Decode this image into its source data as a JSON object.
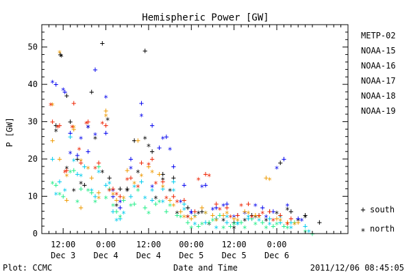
{
  "chart_data": {
    "type": "scatter",
    "title": "Hemispheric Power [GW]",
    "ylabel": "P [GW]",
    "xlabel": "Date and Time",
    "ylim": [
      0,
      56
    ],
    "yticks": [
      0,
      10,
      20,
      30,
      40,
      50
    ],
    "xlim_hours": [
      6,
      92
    ],
    "xticks": [
      {
        "h": 12,
        "time": "12:00",
        "date": "Dec 3"
      },
      {
        "h": 24,
        "time": "0:00",
        "date": "Dec 4"
      },
      {
        "h": 36,
        "time": "12:00",
        "date": "Dec 4"
      },
      {
        "h": 48,
        "time": "00:00",
        "date": "Dec 5"
      },
      {
        "h": 60,
        "time": "12:00",
        "date": "Dec 5"
      },
      {
        "h": 72,
        "time": "0:00",
        "date": "Dec 6"
      }
    ],
    "marker_legend": [
      {
        "symbol": "+",
        "label": "south"
      },
      {
        "symbol": "*",
        "label": "north"
      }
    ],
    "footer_left": "Plot: CCMC",
    "footer_right": "2011/12/06 08:45:05",
    "series": [
      {
        "name": "METP-02",
        "color": "#000000",
        "south": [
          [
            10,
            29
          ],
          [
            11.2,
            48
          ],
          [
            13,
            37
          ],
          [
            14,
            30
          ],
          [
            16,
            20
          ],
          [
            18,
            13
          ],
          [
            20,
            38
          ],
          [
            23,
            51
          ],
          [
            25,
            15
          ],
          [
            28,
            12
          ],
          [
            30,
            12
          ],
          [
            32,
            25
          ],
          [
            35,
            49
          ],
          [
            37,
            22
          ],
          [
            40,
            16
          ],
          [
            43,
            15
          ],
          [
            47,
            7
          ],
          [
            51,
            6
          ],
          [
            55,
            4
          ],
          [
            60,
            3
          ],
          [
            65,
            5
          ],
          [
            70,
            6
          ],
          [
            73,
            19
          ],
          [
            76,
            6
          ],
          [
            80,
            5
          ],
          [
            84,
            3
          ]
        ],
        "north": [
          [
            10,
            28
          ],
          [
            11.5,
            48
          ],
          [
            13,
            18
          ],
          [
            15,
            12
          ],
          [
            17,
            14
          ],
          [
            19,
            29
          ],
          [
            21,
            26
          ],
          [
            23,
            17
          ],
          [
            24.5,
            31
          ],
          [
            27,
            8
          ],
          [
            30,
            12
          ],
          [
            33,
            17
          ],
          [
            35,
            26
          ],
          [
            36,
            24
          ],
          [
            38,
            10
          ],
          [
            40,
            15
          ],
          [
            42,
            12
          ],
          [
            44,
            6
          ],
          [
            47,
            5
          ],
          [
            50,
            6
          ],
          [
            53,
            3
          ],
          [
            57,
            4
          ],
          [
            60,
            2
          ],
          [
            63,
            4
          ],
          [
            66,
            5
          ],
          [
            69,
            4
          ],
          [
            72,
            6
          ],
          [
            75,
            7
          ],
          [
            78,
            4
          ],
          [
            80,
            5
          ]
        ]
      },
      {
        "name": "NOAA-15",
        "color": "#0000ee",
        "south": [
          [
            10,
            40
          ],
          [
            12.5,
            38
          ],
          [
            14,
            27
          ],
          [
            16,
            21
          ],
          [
            19,
            22
          ],
          [
            21,
            44
          ],
          [
            24,
            27
          ],
          [
            26,
            10
          ],
          [
            28,
            7
          ],
          [
            31,
            20
          ],
          [
            34,
            35
          ],
          [
            37,
            29
          ],
          [
            39,
            23
          ],
          [
            41,
            26
          ],
          [
            43,
            18
          ],
          [
            46,
            13
          ],
          [
            48,
            6
          ],
          [
            52,
            13
          ],
          [
            55,
            7
          ],
          [
            58,
            8
          ],
          [
            61,
            5
          ],
          [
            65,
            4
          ],
          [
            68,
            7
          ],
          [
            71,
            6
          ],
          [
            74,
            20
          ],
          [
            78,
            4
          ]
        ],
        "north": [
          [
            9,
            41
          ],
          [
            12,
            39
          ],
          [
            14,
            22
          ],
          [
            17,
            26
          ],
          [
            19,
            29
          ],
          [
            21,
            27
          ],
          [
            24,
            37
          ],
          [
            26,
            12
          ],
          [
            28,
            9
          ],
          [
            31,
            18
          ],
          [
            34,
            32
          ],
          [
            37,
            13
          ],
          [
            40,
            26
          ],
          [
            42,
            23
          ],
          [
            45,
            9
          ],
          [
            48,
            6
          ],
          [
            51,
            13
          ],
          [
            54,
            7
          ],
          [
            57,
            8
          ],
          [
            60,
            5
          ],
          [
            63,
            6
          ],
          [
            66,
            8
          ],
          [
            69,
            5
          ],
          [
            72,
            18
          ],
          [
            75,
            8
          ],
          [
            79,
            4
          ]
        ]
      },
      {
        "name": "NOAA-16",
        "color": "#00ccee",
        "south": [
          [
            9,
            20
          ],
          [
            11,
            14
          ],
          [
            14,
            26
          ],
          [
            16,
            16
          ],
          [
            18,
            18
          ],
          [
            21,
            10
          ],
          [
            24,
            13
          ],
          [
            26,
            6
          ],
          [
            28,
            4
          ],
          [
            31,
            10
          ],
          [
            34,
            14
          ],
          [
            37,
            9
          ],
          [
            40,
            12
          ],
          [
            43,
            14
          ],
          [
            46,
            8
          ],
          [
            49,
            5
          ],
          [
            52,
            3
          ],
          [
            55,
            4
          ],
          [
            58,
            3
          ],
          [
            61,
            3
          ],
          [
            64,
            4
          ],
          [
            67,
            5
          ],
          [
            70,
            4
          ],
          [
            73,
            3
          ],
          [
            76,
            3
          ],
          [
            80,
            2
          ]
        ],
        "north": [
          [
            10,
            11
          ],
          [
            12.5,
            12
          ],
          [
            15,
            20
          ],
          [
            17,
            16
          ],
          [
            20,
            12
          ],
          [
            22,
            17
          ],
          [
            25,
            14
          ],
          [
            27,
            4
          ],
          [
            29,
            6
          ],
          [
            32,
            13
          ],
          [
            35,
            10
          ],
          [
            37,
            12
          ],
          [
            40,
            9
          ],
          [
            43,
            12
          ],
          [
            46,
            7
          ],
          [
            49,
            3
          ],
          [
            52,
            6
          ],
          [
            55,
            2
          ],
          [
            58,
            5
          ],
          [
            61,
            3
          ],
          [
            64,
            5
          ],
          [
            67,
            4
          ],
          [
            70,
            3
          ],
          [
            73,
            5
          ],
          [
            76,
            2
          ],
          [
            81,
            1
          ]
        ]
      },
      {
        "name": "NOAA-17",
        "color": "#22ee88",
        "south": [
          [
            10,
            13
          ],
          [
            12,
            10
          ],
          [
            15,
            17
          ],
          [
            17,
            12
          ],
          [
            20,
            11
          ],
          [
            22,
            18
          ],
          [
            25,
            12
          ],
          [
            27,
            6
          ],
          [
            29,
            9
          ],
          [
            32,
            8
          ],
          [
            35,
            7
          ],
          [
            38,
            8
          ],
          [
            41,
            6
          ],
          [
            44,
            5
          ],
          [
            47,
            3
          ],
          [
            50,
            2
          ],
          [
            53,
            3
          ],
          [
            56,
            5
          ],
          [
            59,
            2
          ],
          [
            62,
            3
          ],
          [
            65,
            4
          ],
          [
            68,
            3
          ],
          [
            71,
            2
          ],
          [
            74,
            2
          ],
          [
            77,
            3
          ],
          [
            82,
            0
          ]
        ],
        "north": [
          [
            9,
            14
          ],
          [
            11,
            11
          ],
          [
            14,
            17
          ],
          [
            16,
            9
          ],
          [
            19,
            12
          ],
          [
            21,
            9
          ],
          [
            24,
            10
          ],
          [
            26,
            8
          ],
          [
            28,
            5
          ],
          [
            31,
            8
          ],
          [
            33,
            12
          ],
          [
            36,
            6
          ],
          [
            39,
            9
          ],
          [
            42,
            8
          ],
          [
            45,
            5
          ],
          [
            48,
            2
          ],
          [
            51,
            3
          ],
          [
            54,
            4
          ],
          [
            57,
            2
          ],
          [
            60,
            3
          ],
          [
            63,
            2
          ],
          [
            66,
            3
          ],
          [
            69,
            2
          ],
          [
            72,
            3
          ],
          [
            75,
            2
          ],
          [
            80,
            1
          ]
        ]
      },
      {
        "name": "NOAA-18",
        "color": "#ee9900",
        "south": [
          [
            9,
            25
          ],
          [
            11,
            20
          ],
          [
            13,
            9
          ],
          [
            15,
            28
          ],
          [
            17,
            7
          ],
          [
            20,
            15
          ],
          [
            22,
            11
          ],
          [
            24,
            33
          ],
          [
            27,
            9
          ],
          [
            30,
            17
          ],
          [
            33,
            25
          ],
          [
            36,
            18
          ],
          [
            39,
            16
          ],
          [
            42,
            9
          ],
          [
            45,
            6
          ],
          [
            48,
            4
          ],
          [
            51,
            7
          ],
          [
            54,
            5
          ],
          [
            57,
            5
          ],
          [
            60,
            4
          ],
          [
            63,
            6
          ],
          [
            66,
            5
          ],
          [
            69,
            15
          ],
          [
            72,
            4
          ],
          [
            75,
            3
          ],
          [
            78,
            3
          ]
        ],
        "north": [
          [
            9,
            35
          ],
          [
            11,
            49
          ],
          [
            13,
            16
          ],
          [
            15,
            29
          ],
          [
            17,
            20
          ],
          [
            19,
            18
          ],
          [
            22,
            10
          ],
          [
            24,
            32
          ],
          [
            26,
            11
          ],
          [
            29,
            10
          ],
          [
            32,
            14
          ],
          [
            34,
            16
          ],
          [
            37,
            17
          ],
          [
            40,
            13
          ],
          [
            43,
            8
          ],
          [
            46,
            5
          ],
          [
            49,
            5
          ],
          [
            52,
            6
          ],
          [
            55,
            4
          ],
          [
            58,
            6
          ],
          [
            61,
            4
          ],
          [
            64,
            6
          ],
          [
            67,
            5
          ],
          [
            70,
            15
          ],
          [
            73,
            4
          ],
          [
            77,
            3
          ]
        ]
      },
      {
        "name": "NOAA-19",
        "color": "#ee2200",
        "south": [
          [
            9,
            30
          ],
          [
            11,
            29
          ],
          [
            13,
            17
          ],
          [
            15,
            35
          ],
          [
            17,
            19
          ],
          [
            19,
            30
          ],
          [
            22,
            19
          ],
          [
            24,
            29
          ],
          [
            26,
            12
          ],
          [
            28,
            10
          ],
          [
            31,
            15
          ],
          [
            34,
            19
          ],
          [
            37,
            20
          ],
          [
            40,
            14
          ],
          [
            43,
            10
          ],
          [
            46,
            9
          ],
          [
            49,
            6
          ],
          [
            52,
            16
          ],
          [
            55,
            8
          ],
          [
            58,
            7
          ],
          [
            61,
            5
          ],
          [
            64,
            8
          ],
          [
            67,
            5
          ],
          [
            70,
            6
          ],
          [
            73,
            5
          ],
          [
            76,
            4
          ]
        ],
        "north": [
          [
            8.5,
            35
          ],
          [
            10.5,
            29
          ],
          [
            12.5,
            17
          ],
          [
            14.5,
            29
          ],
          [
            16.5,
            23
          ],
          [
            18.5,
            30
          ],
          [
            21,
            18
          ],
          [
            23,
            30
          ],
          [
            25,
            12
          ],
          [
            27,
            11
          ],
          [
            30,
            15
          ],
          [
            33,
            13
          ],
          [
            36,
            19
          ],
          [
            38,
            14
          ],
          [
            41,
            10
          ],
          [
            44,
            9
          ],
          [
            47,
            5
          ],
          [
            50,
            15
          ],
          [
            53,
            16
          ],
          [
            56,
            7
          ],
          [
            59,
            5
          ],
          [
            62,
            8
          ],
          [
            65,
            5
          ],
          [
            68,
            6
          ],
          [
            71,
            4
          ],
          [
            75,
            3
          ]
        ]
      }
    ]
  }
}
